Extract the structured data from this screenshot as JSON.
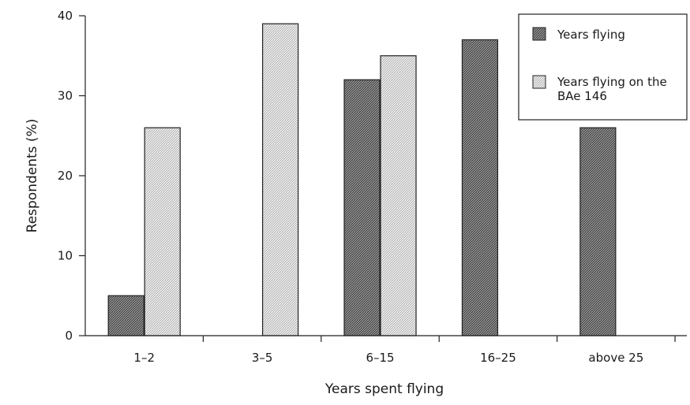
{
  "chart_data": {
    "type": "bar",
    "categories": [
      "1–2",
      "3–5",
      "6–15",
      "16–25",
      "above 25"
    ],
    "series": [
      {
        "name": "Years flying",
        "values": [
          5,
          0,
          32,
          37,
          26
        ],
        "pattern": "dark-stipple",
        "color": "#5a5a5a"
      },
      {
        "name": "Years flying on the BAe 146",
        "values": [
          26,
          39,
          35,
          0,
          0
        ],
        "pattern": "light-stipple",
        "color": "#d8d8d8"
      }
    ],
    "xlabel": "Years spent flying",
    "ylabel": "Respondents (%)",
    "ylim": [
      0,
      40
    ],
    "yticks": [
      0,
      10,
      20,
      30,
      40
    ],
    "grid": false,
    "legend": {
      "placement": "top-right",
      "entries": [
        "Years flying",
        "Years flying on the",
        "BAe 146"
      ]
    }
  }
}
